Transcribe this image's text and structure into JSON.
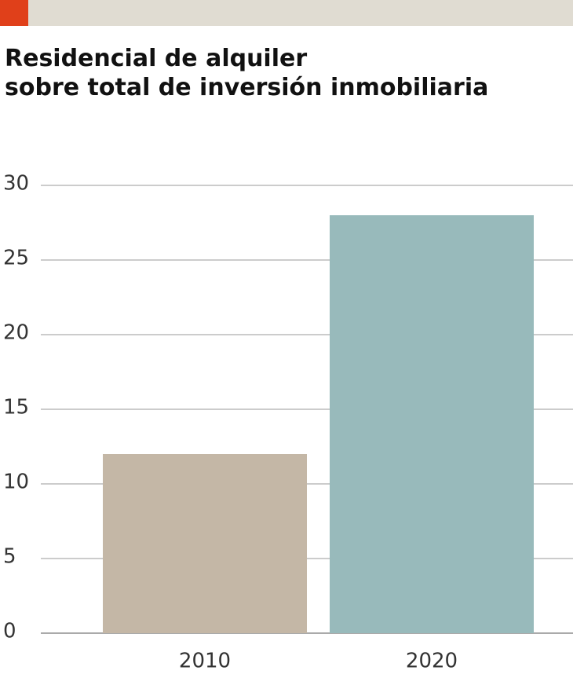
{
  "chart_data": {
    "type": "bar",
    "title": [
      "Residencial de alquiler",
      "sobre total de inversión inmobiliaria"
    ],
    "categories": [
      "2010",
      "2020"
    ],
    "values": [
      12,
      28
    ],
    "colors": [
      "#c4b7a6",
      "#98babb"
    ],
    "ylim": [
      0,
      30
    ],
    "yticks": [
      0,
      5,
      10,
      15,
      20,
      25,
      30
    ],
    "grid": true
  }
}
